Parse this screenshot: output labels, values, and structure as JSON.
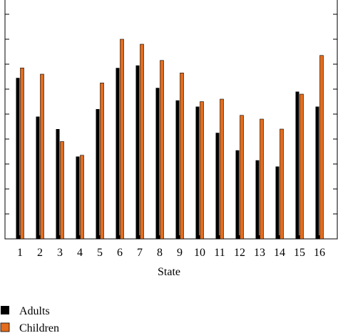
{
  "chart_data": {
    "type": "bar",
    "title": "",
    "xlabel": "State",
    "ylabel": "",
    "categories": [
      "1",
      "2",
      "3",
      "4",
      "5",
      "6",
      "7",
      "8",
      "9",
      "10",
      "11",
      "12",
      "13",
      "14",
      "15",
      "16"
    ],
    "ylim": [
      0,
      100
    ],
    "y_tick_count": 11,
    "grid": false,
    "legend_position": "bottom-left",
    "series": [
      {
        "name": "Adults",
        "color": "#000000",
        "values": [
          64.5,
          49,
          44,
          33,
          52,
          68.5,
          69.5,
          60.5,
          55.5,
          53,
          42.5,
          35.5,
          31.5,
          29,
          59,
          53
        ]
      },
      {
        "name": "Children",
        "color": "#e36c1d",
        "values": [
          68.5,
          66,
          39,
          33.5,
          62.5,
          80,
          78,
          71.5,
          66.5,
          55,
          56,
          49.5,
          48,
          44,
          58,
          73.5
        ]
      }
    ]
  }
}
